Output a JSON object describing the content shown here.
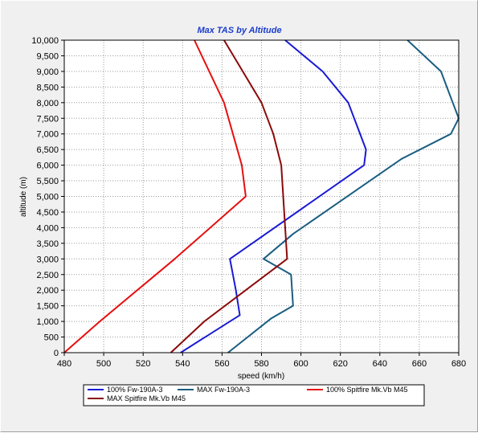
{
  "chart_data": {
    "type": "line",
    "title": "Max TAS by Altitude",
    "xlabel": "speed (km/h)",
    "ylabel": "altitude (m)",
    "xlim": [
      480,
      680
    ],
    "ylim": [
      0,
      10000
    ],
    "x_ticks": [
      "480",
      "500",
      "520",
      "540",
      "560",
      "580",
      "600",
      "620",
      "640",
      "660",
      "680"
    ],
    "x_tick_values": [
      480,
      500,
      520,
      540,
      560,
      580,
      600,
      620,
      640,
      660,
      680
    ],
    "y_ticks": [
      "0",
      "500",
      "1,000",
      "1,500",
      "2,000",
      "2,500",
      "3,000",
      "3,500",
      "4,000",
      "4,500",
      "5,000",
      "5,500",
      "6,000",
      "6,500",
      "7,000",
      "7,500",
      "8,000",
      "8,500",
      "9,000",
      "9,500",
      "10,000"
    ],
    "y_tick_values": [
      0,
      500,
      1000,
      1500,
      2000,
      2500,
      3000,
      3500,
      4000,
      4500,
      5000,
      5500,
      6000,
      6500,
      7000,
      7500,
      8000,
      8500,
      9000,
      9500,
      10000
    ],
    "grid": "dotted",
    "legend_position": "bottom",
    "series": [
      {
        "name": "100% Fw-190A-3",
        "color": "#1a1ad6",
        "points": [
          [
            539,
            0
          ],
          [
            569,
            1200
          ],
          [
            567,
            2000
          ],
          [
            564,
            3000
          ],
          [
            632,
            6000
          ],
          [
            633,
            6500
          ],
          [
            624,
            8000
          ],
          [
            611,
            9000
          ],
          [
            592,
            10000
          ]
        ]
      },
      {
        "name": "MAX Fw-190A-3",
        "color": "#1a5e82",
        "points": [
          [
            563,
            0
          ],
          [
            585,
            1100
          ],
          [
            596,
            1500
          ],
          [
            595,
            2500
          ],
          [
            581,
            3000
          ],
          [
            596,
            3800
          ],
          [
            651,
            6200
          ],
          [
            676,
            7000
          ],
          [
            680,
            7500
          ],
          [
            677,
            8000
          ],
          [
            671,
            9000
          ],
          [
            654,
            10000
          ]
        ]
      },
      {
        "name": "100% Spitfire Mk.Vb M45",
        "color": "#e60f0f",
        "points": [
          [
            480,
            0
          ],
          [
            498,
            1000
          ],
          [
            536,
            3000
          ],
          [
            572,
            5000
          ],
          [
            570,
            6000
          ],
          [
            561,
            8000
          ],
          [
            546,
            10000
          ]
        ]
      },
      {
        "name": "MAX Spitfire Mk.Vb M45",
        "color": "#8b0a0a",
        "points": [
          [
            534,
            0
          ],
          [
            551,
            1000
          ],
          [
            593,
            3000
          ],
          [
            590,
            6000
          ],
          [
            586,
            7000
          ],
          [
            580,
            8000
          ],
          [
            561,
            10000
          ]
        ]
      }
    ]
  }
}
